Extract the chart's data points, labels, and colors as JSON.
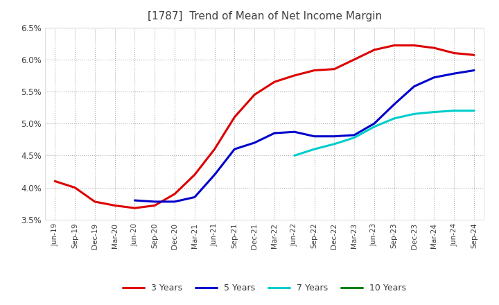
{
  "title": "[1787]  Trend of Mean of Net Income Margin",
  "title_color": "#404040",
  "background_color": "#ffffff",
  "plot_bg_color": "#ffffff",
  "grid_color": "#b0b0b0",
  "ylim": [
    0.035,
    0.065
  ],
  "yticks": [
    0.035,
    0.04,
    0.045,
    0.05,
    0.055,
    0.06,
    0.065
  ],
  "x_labels": [
    "Jun-19",
    "Sep-19",
    "Dec-19",
    "Mar-20",
    "Jun-20",
    "Sep-20",
    "Dec-20",
    "Mar-21",
    "Jun-21",
    "Sep-21",
    "Dec-21",
    "Mar-22",
    "Jun-22",
    "Sep-22",
    "Dec-22",
    "Mar-23",
    "Jun-23",
    "Sep-23",
    "Dec-23",
    "Mar-24",
    "Jun-24",
    "Sep-24"
  ],
  "series": {
    "3 Years": {
      "color": "#dd0000",
      "values": [
        0.041,
        0.04,
        0.0378,
        0.0372,
        0.0368,
        0.0372,
        0.039,
        0.042,
        0.046,
        0.051,
        0.0545,
        0.0565,
        0.0575,
        0.0583,
        0.0585,
        0.06,
        0.0615,
        0.0622,
        0.0622,
        0.0618,
        0.061,
        0.0607
      ]
    },
    "5 Years": {
      "color": "#0000cc",
      "values": [
        null,
        null,
        null,
        null,
        0.038,
        0.0378,
        0.0378,
        0.0385,
        0.042,
        0.046,
        0.047,
        0.0485,
        0.0487,
        0.048,
        0.048,
        0.0482,
        0.05,
        0.053,
        0.0558,
        0.0572,
        0.0578,
        0.0583
      ]
    },
    "7 Years": {
      "color": "#00cccc",
      "values": [
        null,
        null,
        null,
        null,
        null,
        null,
        null,
        null,
        null,
        null,
        null,
        null,
        0.045,
        0.046,
        0.0468,
        0.0478,
        0.0495,
        0.0508,
        0.0515,
        0.0518,
        0.052,
        0.052
      ]
    },
    "10 Years": {
      "color": "#008000",
      "values": [
        null,
        null,
        null,
        null,
        null,
        null,
        null,
        null,
        null,
        null,
        null,
        null,
        null,
        null,
        null,
        null,
        null,
        null,
        null,
        null,
        null,
        null
      ]
    }
  },
  "legend_loc": "lower center",
  "line_width": 2.2
}
